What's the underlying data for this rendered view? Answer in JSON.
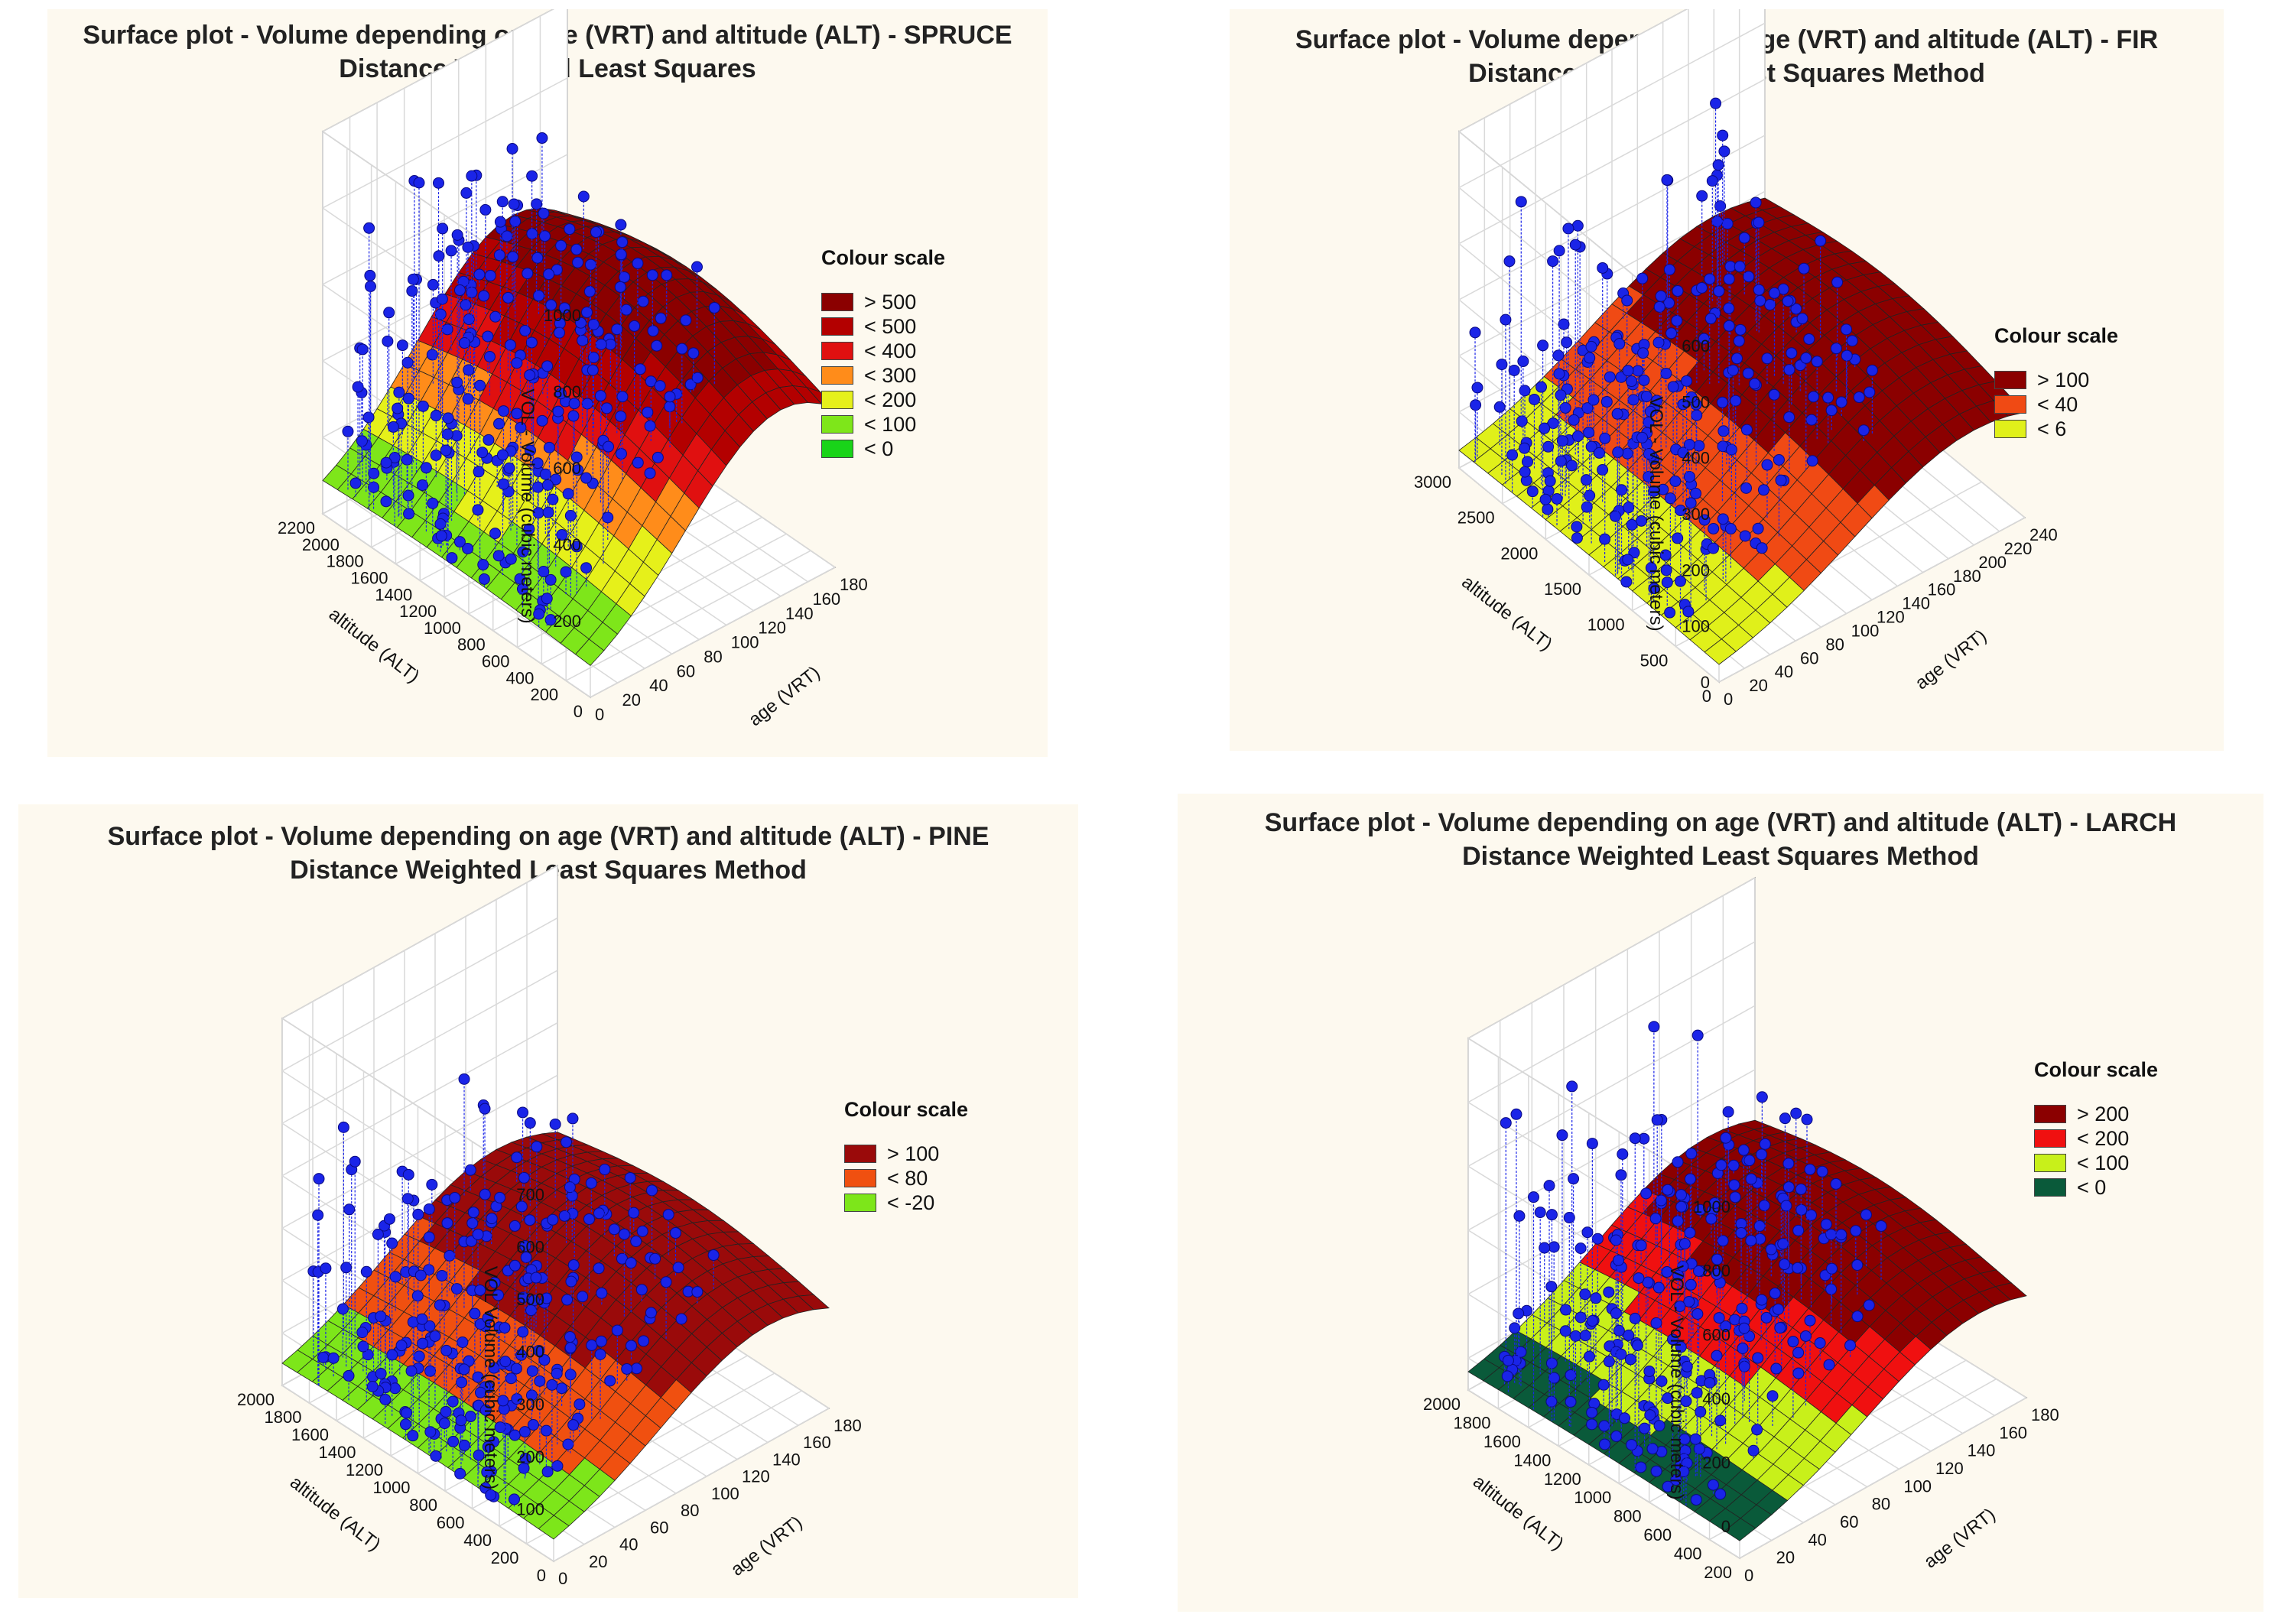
{
  "colors": {
    "point": "#1a24e8",
    "panel_bg": "#fdf9ef",
    "grid": "#d9d9d9"
  },
  "chart_data": [
    {
      "type": "surface3d",
      "id": "spruce",
      "title": "Surface plot - Volume depending on age (VRT) and altitude (ALT) - SPRUCE",
      "subtitle": "Distance Weighted Least Squares",
      "zlabel": "VOL - Volume (cubic meters)",
      "ylabel": "altitude (ALT)",
      "xlabel": "age (VRT)",
      "x_ticks": [
        "0",
        "20",
        "40",
        "60",
        "80",
        "100",
        "120",
        "140",
        "160",
        "180"
      ],
      "y_ticks": [
        "0",
        "200",
        "400",
        "600",
        "800",
        "1000",
        "1200",
        "1400",
        "1600",
        "1800",
        "2000",
        "2200"
      ],
      "z_ticks": [
        "200",
        "400",
        "600",
        "800",
        "1000"
      ],
      "xlim": [
        0,
        180
      ],
      "ylim": [
        0,
        2200
      ],
      "zlim": [
        0,
        1000
      ],
      "legend_title": "Colour scale",
      "legend": [
        {
          "label": "> 500",
          "color": "#8b0000"
        },
        {
          "label": "< 500",
          "color": "#b30000"
        },
        {
          "label": "< 400",
          "color": "#e01010"
        },
        {
          "label": "< 300",
          "color": "#ff8c1a"
        },
        {
          "label": "< 200",
          "color": "#e6f01a"
        },
        {
          "label": "< 100",
          "color": "#7ee61a"
        },
        {
          "label": "< 0",
          "color": "#19d419"
        }
      ],
      "surface_peak": {
        "age": 140,
        "altitude": 1200,
        "volume": 600
      },
      "point_max_volume": 950
    },
    {
      "type": "surface3d",
      "id": "fir",
      "title": "Surface plot - Volume depending on age (VRT) and altitude (ALT) - FIR",
      "subtitle": "Distance Weighted Least Squares Method",
      "zlabel": "VOL - Volume (cubic meters)",
      "ylabel": "altitude (ALT)",
      "xlabel": "age (VRT)",
      "x_ticks": [
        "0",
        "20",
        "40",
        "60",
        "80",
        "100",
        "120",
        "140",
        "160",
        "180",
        "200",
        "220",
        "240"
      ],
      "y_ticks": [
        "0",
        "500",
        "1000",
        "1500",
        "2000",
        "2500",
        "3000"
      ],
      "z_ticks": [
        "0",
        "100",
        "200",
        "300",
        "400",
        "500",
        "600"
      ],
      "xlim": [
        0,
        240
      ],
      "ylim": [
        0,
        3000
      ],
      "zlim": [
        0,
        600
      ],
      "legend_title": "Colour scale",
      "legend": [
        {
          "label": "> 100",
          "color": "#8b0000"
        },
        {
          "label": "< 40",
          "color": "#f04a14"
        },
        {
          "label": "< 6",
          "color": "#e0f01a"
        }
      ],
      "surface_peak": {
        "age": 200,
        "altitude": 1500,
        "volume": 240
      },
      "point_max_volume": 540
    },
    {
      "type": "surface3d",
      "id": "pine",
      "title": "Surface plot - Volume depending on age (VRT) and altitude (ALT) - PINE",
      "subtitle": "Distance Weighted Least Squares Method",
      "zlabel": "VOL Volume (cubic meters)",
      "ylabel": "altitude (ALT)",
      "xlabel": "age (VRT)",
      "x_ticks": [
        "0",
        "20",
        "40",
        "60",
        "80",
        "100",
        "120",
        "140",
        "160",
        "180"
      ],
      "y_ticks": [
        "0",
        "200",
        "400",
        "600",
        "800",
        "1000",
        "1200",
        "1400",
        "1600",
        "1800",
        "2000"
      ],
      "z_ticks": [
        "100",
        "200",
        "300",
        "400",
        "500",
        "600",
        "700"
      ],
      "xlim": [
        0,
        180
      ],
      "ylim": [
        0,
        2000
      ],
      "zlim": [
        0,
        700
      ],
      "legend_title": "Colour scale",
      "legend": [
        {
          "label": "> 100",
          "color": "#9a0a0a"
        },
        {
          "label": "< 80",
          "color": "#f05010"
        },
        {
          "label": "< -20",
          "color": "#7de61a"
        }
      ],
      "surface_peak": {
        "age": 140,
        "altitude": 1000,
        "volume": 260
      },
      "point_max_volume": 510
    },
    {
      "type": "surface3d",
      "id": "larch",
      "title": "Surface plot - Volume depending on age (VRT) and altitude (ALT) - LARCH",
      "subtitle": "Distance Weighted Least Squares Method",
      "zlabel": "VOL - Volume (cubic meters)",
      "ylabel": "altitude (ALT)",
      "xlabel": "age (VRT)",
      "x_ticks": [
        "0",
        "20",
        "40",
        "60",
        "80",
        "100",
        "120",
        "140",
        "160",
        "180"
      ],
      "y_ticks": [
        "200",
        "400",
        "600",
        "800",
        "1000",
        "1200",
        "1400",
        "1600",
        "1800",
        "2000"
      ],
      "z_ticks": [
        "0",
        "200",
        "400",
        "600",
        "800",
        "1000"
      ],
      "xlim": [
        0,
        180
      ],
      "ylim": [
        200,
        2000
      ],
      "zlim": [
        -100,
        1000
      ],
      "legend_title": "Colour scale",
      "legend": [
        {
          "label": "> 200",
          "color": "#8b0000"
        },
        {
          "label": "< 200",
          "color": "#f01010"
        },
        {
          "label": "< 100",
          "color": "#c8f01a"
        },
        {
          "label": "< 0",
          "color": "#0a5a3a"
        }
      ],
      "surface_peak": {
        "age": 150,
        "altitude": 1200,
        "volume": 320
      },
      "point_max_volume": 870
    }
  ]
}
